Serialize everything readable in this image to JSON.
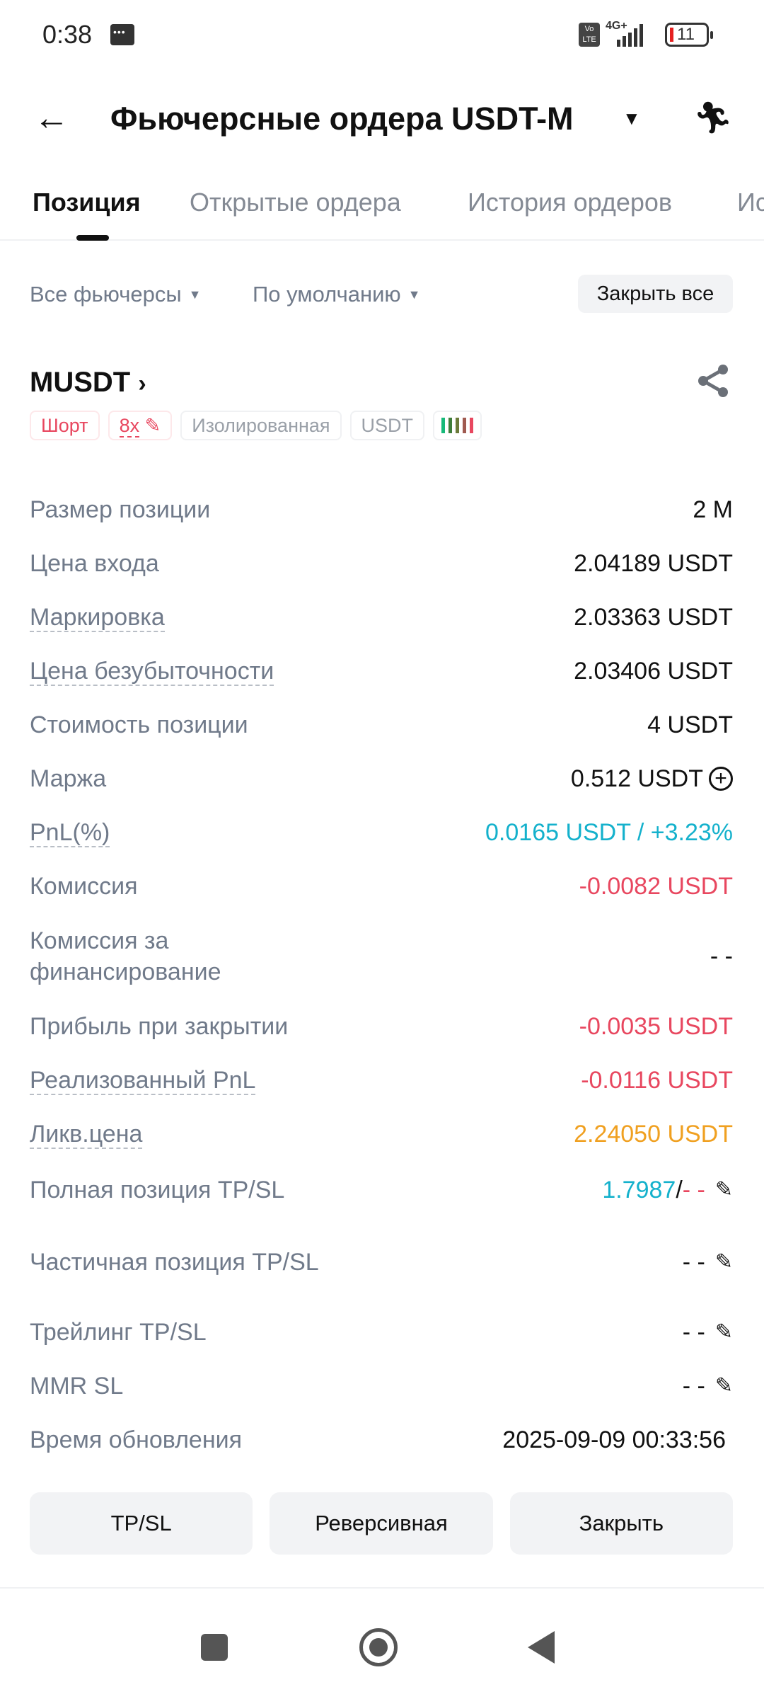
{
  "status_bar": {
    "time": "0:38",
    "network": "4G+",
    "volte": "Vo LTE",
    "battery": "11"
  },
  "header": {
    "title": "Фьючерсные ордера USDT-M",
    "back_icon": "arrow-left-icon",
    "action_icon": "runner-icon"
  },
  "tabs": [
    {
      "label": "Позиция",
      "active": true
    },
    {
      "label": "Открытые ордера"
    },
    {
      "label": "История ордеров"
    },
    {
      "label": "Ис"
    }
  ],
  "filters": {
    "futures": "Все фьючерсы",
    "sort": "По умолчанию",
    "close_all": "Закрыть все"
  },
  "position": {
    "symbol": "MUSDT",
    "badges": {
      "side": "Шорт",
      "leverage": "8x",
      "margin_mode": "Изолированная",
      "asset": "USDT"
    },
    "adl_bars": [
      "#16b979",
      "#3f7d3a",
      "#6b7a3a",
      "#a05a50",
      "#e8475f"
    ],
    "rows": [
      {
        "label": "Размер позиции",
        "value": "2 M"
      },
      {
        "label": "Цена входа",
        "value": "2.04189 USDT"
      },
      {
        "label": "Маркировка",
        "value": "2.03363 USDT"
      },
      {
        "label": "Цена безубыточности",
        "value": "2.03406 USDT"
      },
      {
        "label": "Стоимость позиции",
        "value": "4 USDT"
      },
      {
        "label": "Маржа",
        "value": "0.512 USDT"
      },
      {
        "label": "PnL(%)",
        "value": "0.0165 USDT / +3.23%"
      },
      {
        "label": "Комиссия",
        "value": "-0.0082 USDT"
      },
      {
        "label": "Комиссия за финансирование",
        "value": "- -"
      },
      {
        "label": "Прибыль при закрытии",
        "value": "-0.0035 USDT"
      },
      {
        "label": "Реализованный PnL",
        "value": "-0.0116 USDT"
      },
      {
        "label": "Ликв.цена",
        "value": "2.24050 USDT"
      },
      {
        "label": "Полная позиция TP/SL",
        "tp": "1.7987",
        "sep": "/",
        "sl": "- -"
      },
      {
        "label": "Частичная позиция TP/SL",
        "value": "- -"
      },
      {
        "label": "Трейлинг TP/SL",
        "value": "- -"
      },
      {
        "label": "MMR SL",
        "value": "- -"
      },
      {
        "label": "Время обновления",
        "value": "2025-09-09 00:33:56"
      }
    ]
  },
  "actions": {
    "tpsl": "TP/SL",
    "reverse": "Реверсивная",
    "close": "Закрыть"
  },
  "colors": {
    "teal": "#14b1cc",
    "red": "#e8475f",
    "orange": "#f0a020"
  }
}
